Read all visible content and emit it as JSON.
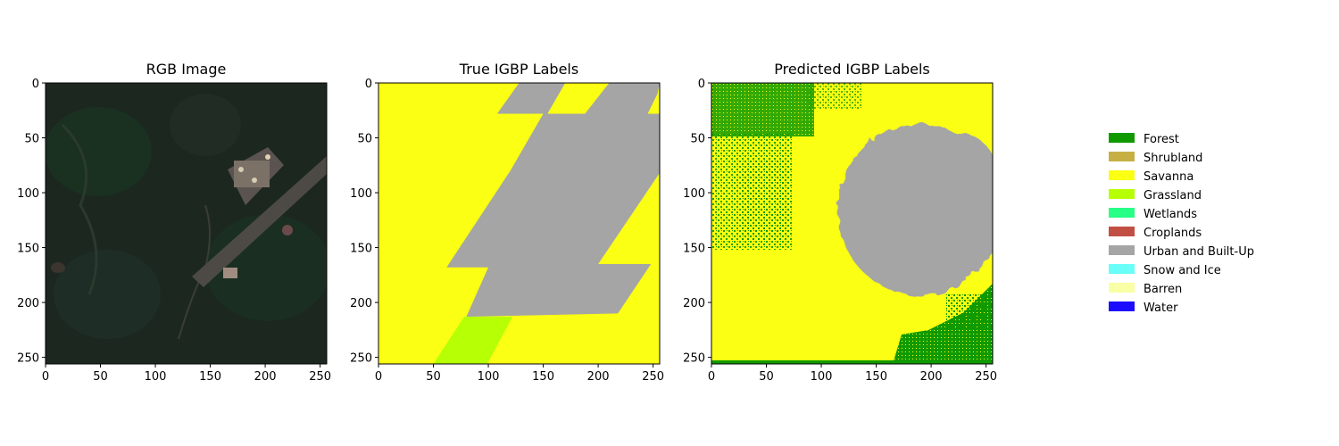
{
  "chart_data": [
    {
      "type": "heatmap",
      "title": "RGB Image",
      "xlim": [
        0,
        256
      ],
      "ylim": [
        256,
        0
      ],
      "xticks": [
        "0",
        "50",
        "100",
        "150",
        "200",
        "250"
      ],
      "yticks": [
        "0",
        "50",
        "100",
        "150",
        "200",
        "250"
      ],
      "content": "satellite RGB image: dark green forested terrain with an airport/runway and built-up area"
    },
    {
      "type": "heatmap",
      "title": "True IGBP Labels",
      "xlim": [
        0,
        256
      ],
      "ylim": [
        256,
        0
      ],
      "xticks": [
        "0",
        "50",
        "100",
        "150",
        "200",
        "250"
      ],
      "yticks": [
        "0",
        "50",
        "100",
        "150",
        "200",
        "250"
      ],
      "regions": [
        {
          "label": "Savanna",
          "polygon": [
            [
              0,
              0
            ],
            [
              256,
              0
            ],
            [
              256,
              256
            ],
            [
              0,
              256
            ]
          ]
        },
        {
          "label": "Urban and Built-Up",
          "polygon": [
            [
              108,
              28
            ],
            [
              128,
              0
            ],
            [
              170,
              0
            ],
            [
              155,
              26
            ],
            [
              154,
              28
            ]
          ]
        },
        {
          "label": "Urban and Built-Up",
          "polygon": [
            [
              188,
              28
            ],
            [
              210,
              0
            ],
            [
              256,
              0
            ],
            [
              254,
              10
            ],
            [
              245,
              28
            ]
          ]
        },
        {
          "label": "Urban and Built-Up",
          "polygon": [
            [
              150,
              28
            ],
            [
              256,
              28
            ],
            [
              256,
              82
            ],
            [
              200,
              165
            ],
            [
              248,
              165
            ],
            [
              218,
              210
            ],
            [
              80,
              213
            ],
            [
              100,
              168
            ],
            [
              62,
              168
            ],
            [
              120,
              80
            ]
          ]
        },
        {
          "label": "Grassland",
          "polygon": [
            [
              78,
              213
            ],
            [
              122,
              213
            ],
            [
              99,
              256
            ],
            [
              50,
              256
            ]
          ]
        }
      ]
    },
    {
      "type": "heatmap",
      "title": "Predicted IGBP Labels",
      "xlim": [
        0,
        256
      ],
      "ylim": [
        256,
        0
      ],
      "xticks": [
        "0",
        "50",
        "100",
        "150",
        "200",
        "250"
      ],
      "yticks": [
        "0",
        "50",
        "100",
        "150",
        "200",
        "250"
      ],
      "regions": [
        {
          "label": "Savanna",
          "shape": "background"
        },
        {
          "label": "Forest",
          "shape": "scattered",
          "area": [
            [
              0,
              0
            ],
            [
              90,
              50
            ]
          ]
        },
        {
          "label": "Forest",
          "shape": "scattered",
          "area": [
            [
              0,
              50
            ],
            [
              70,
              140
            ]
          ]
        },
        {
          "label": "Urban and Built-Up",
          "shape": "blob",
          "center": [
            190,
            115
          ],
          "radius": [
            68,
            78
          ]
        },
        {
          "label": "Forest",
          "shape": "scattered",
          "area": [
            [
              165,
              185
            ],
            [
              256,
              256
            ]
          ]
        }
      ]
    }
  ],
  "legend": {
    "placement": "right",
    "entries": [
      {
        "label": "Forest",
        "color": "#119a00"
      },
      {
        "label": "Shrubland",
        "color": "#c6b044"
      },
      {
        "label": "Savanna",
        "color": "#fbff13"
      },
      {
        "label": "Grassland",
        "color": "#b6ff05"
      },
      {
        "label": "Wetlands",
        "color": "#27ff87"
      },
      {
        "label": "Croplands",
        "color": "#c24f44"
      },
      {
        "label": "Urban and Built-Up",
        "color": "#a5a5a5"
      },
      {
        "label": "Snow and Ice",
        "color": "#69fff8"
      },
      {
        "label": "Barren",
        "color": "#f9ffa4"
      },
      {
        "label": "Water",
        "color": "#1c0dff"
      }
    ]
  }
}
